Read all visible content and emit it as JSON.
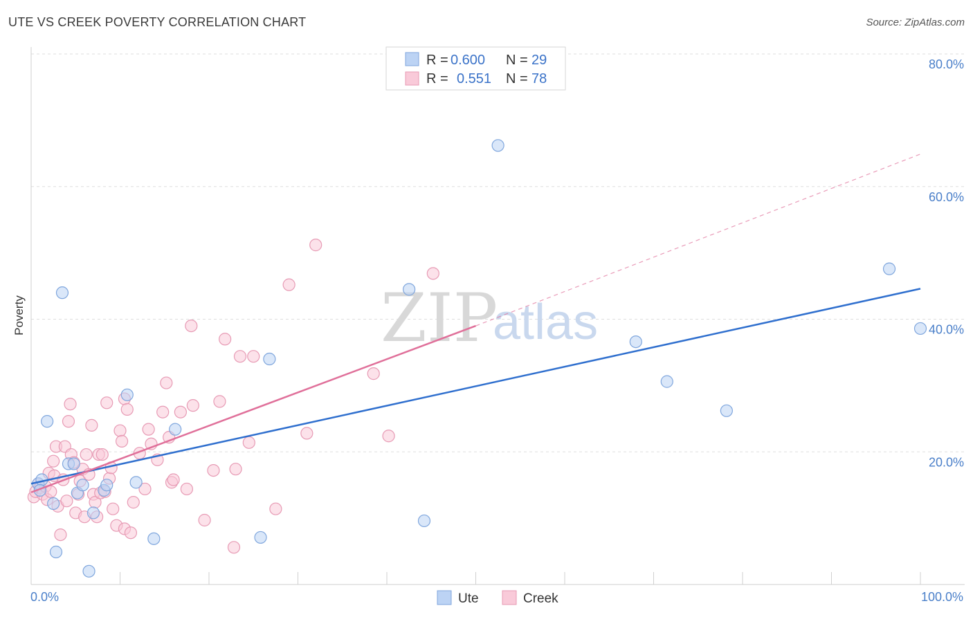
{
  "header": {
    "title": "UTE VS CREEK POVERTY CORRELATION CHART",
    "source": "Source: ZipAtlas.com"
  },
  "watermark": {
    "zip": "ZIP",
    "atlas": "atlas"
  },
  "legend": {
    "r_label": "R =",
    "n_label": "N =",
    "ute": {
      "r": "0.600",
      "n": "29"
    },
    "creek": {
      "r": "0.551",
      "n": "78"
    }
  },
  "bottom_legend": {
    "ute": "Ute",
    "creek": "Creek"
  },
  "chart_data": {
    "type": "scatter",
    "title": "UTE VS CREEK POVERTY CORRELATION CHART",
    "ylabel": "Poverty",
    "xlabel": "",
    "xlim": [
      0,
      100
    ],
    "ylim": [
      0,
      80
    ],
    "x_tick_labels": [
      "0.0%",
      "100.0%"
    ],
    "y_ticks": [
      20,
      40,
      60,
      80
    ],
    "y_tick_labels": [
      "20.0%",
      "40.0%",
      "60.0%",
      "80.0%"
    ],
    "grid": true,
    "legend_position": "top-center",
    "colors": {
      "ute": "#a9c7ef",
      "ute_line": "#2f6fce",
      "creek": "#f5b8cb",
      "creek_line": "#e0709a"
    },
    "series": [
      {
        "name": "Ute",
        "r": 0.6,
        "n": 29,
        "trend": {
          "x0": 0,
          "y0": 15.2,
          "x1": 100,
          "y1": 44.6
        },
        "points": [
          [
            0.8,
            15.2
          ],
          [
            1.2,
            15.8
          ],
          [
            1.8,
            24.6
          ],
          [
            2.5,
            12.2
          ],
          [
            2.8,
            4.9
          ],
          [
            3.5,
            44.0
          ],
          [
            4.2,
            18.2
          ],
          [
            4.8,
            18.2
          ],
          [
            5.2,
            13.8
          ],
          [
            5.8,
            15.0
          ],
          [
            6.5,
            2.0
          ],
          [
            7.0,
            10.8
          ],
          [
            8.2,
            14.2
          ],
          [
            8.5,
            15.0
          ],
          [
            10.8,
            28.6
          ],
          [
            11.8,
            15.4
          ],
          [
            13.8,
            6.9
          ],
          [
            16.2,
            23.4
          ],
          [
            25.8,
            7.1
          ],
          [
            26.8,
            34.0
          ],
          [
            42.5,
            44.5
          ],
          [
            44.2,
            9.6
          ],
          [
            52.5,
            66.2
          ],
          [
            68.0,
            36.6
          ],
          [
            71.5,
            30.6
          ],
          [
            78.2,
            26.2
          ],
          [
            96.5,
            47.6
          ],
          [
            100.0,
            38.6
          ],
          [
            1.0,
            14.2
          ]
        ]
      },
      {
        "name": "Creek",
        "r": 0.551,
        "n": 78,
        "trend": {
          "x0": 0,
          "y0": 13.9,
          "x1": 50,
          "y1": 39.0
        },
        "trend_dashed": {
          "x0": 50,
          "y0": 39.0,
          "x1": 100,
          "y1": 64.9
        },
        "points": [
          [
            0.3,
            13.2
          ],
          [
            0.5,
            14.0
          ],
          [
            0.8,
            15.2
          ],
          [
            1.0,
            14.6
          ],
          [
            1.3,
            13.6
          ],
          [
            1.6,
            14.8
          ],
          [
            1.8,
            12.8
          ],
          [
            2.0,
            16.8
          ],
          [
            2.2,
            14.0
          ],
          [
            2.5,
            18.6
          ],
          [
            2.6,
            16.4
          ],
          [
            2.8,
            20.8
          ],
          [
            3.0,
            11.8
          ],
          [
            3.3,
            7.5
          ],
          [
            3.6,
            15.8
          ],
          [
            3.8,
            20.8
          ],
          [
            4.0,
            12.6
          ],
          [
            4.2,
            24.6
          ],
          [
            4.4,
            27.2
          ],
          [
            4.5,
            19.6
          ],
          [
            4.8,
            18.4
          ],
          [
            5.0,
            10.8
          ],
          [
            5.3,
            13.6
          ],
          [
            5.5,
            15.6
          ],
          [
            5.8,
            17.4
          ],
          [
            6.0,
            10.2
          ],
          [
            6.2,
            19.6
          ],
          [
            6.5,
            16.6
          ],
          [
            6.8,
            24.0
          ],
          [
            7.0,
            13.6
          ],
          [
            7.2,
            12.4
          ],
          [
            7.4,
            10.2
          ],
          [
            7.6,
            19.6
          ],
          [
            7.8,
            13.8
          ],
          [
            8.0,
            19.6
          ],
          [
            8.3,
            14.0
          ],
          [
            8.5,
            27.4
          ],
          [
            8.8,
            16.0
          ],
          [
            9.0,
            17.6
          ],
          [
            9.2,
            11.4
          ],
          [
            9.6,
            8.9
          ],
          [
            10.0,
            23.2
          ],
          [
            10.2,
            21.6
          ],
          [
            10.5,
            28.0
          ],
          [
            10.8,
            26.4
          ],
          [
            10.5,
            8.4
          ],
          [
            11.2,
            7.8
          ],
          [
            11.5,
            12.4
          ],
          [
            12.2,
            19.8
          ],
          [
            12.8,
            14.4
          ],
          [
            13.2,
            23.4
          ],
          [
            13.5,
            21.2
          ],
          [
            14.2,
            18.8
          ],
          [
            14.8,
            26.0
          ],
          [
            15.2,
            30.4
          ],
          [
            15.5,
            22.2
          ],
          [
            15.8,
            15.4
          ],
          [
            16.0,
            15.8
          ],
          [
            16.8,
            26.0
          ],
          [
            17.5,
            14.4
          ],
          [
            18.0,
            39.0
          ],
          [
            18.2,
            27.0
          ],
          [
            19.5,
            9.7
          ],
          [
            20.5,
            17.2
          ],
          [
            21.2,
            27.6
          ],
          [
            21.8,
            37.0
          ],
          [
            22.8,
            5.6
          ],
          [
            23.0,
            17.4
          ],
          [
            23.5,
            34.4
          ],
          [
            24.5,
            21.4
          ],
          [
            25.0,
            34.4
          ],
          [
            27.5,
            11.4
          ],
          [
            29.0,
            45.2
          ],
          [
            31.0,
            22.8
          ],
          [
            32.0,
            51.2
          ],
          [
            38.5,
            31.8
          ],
          [
            40.2,
            22.4
          ],
          [
            45.2,
            46.9
          ]
        ]
      }
    ]
  }
}
